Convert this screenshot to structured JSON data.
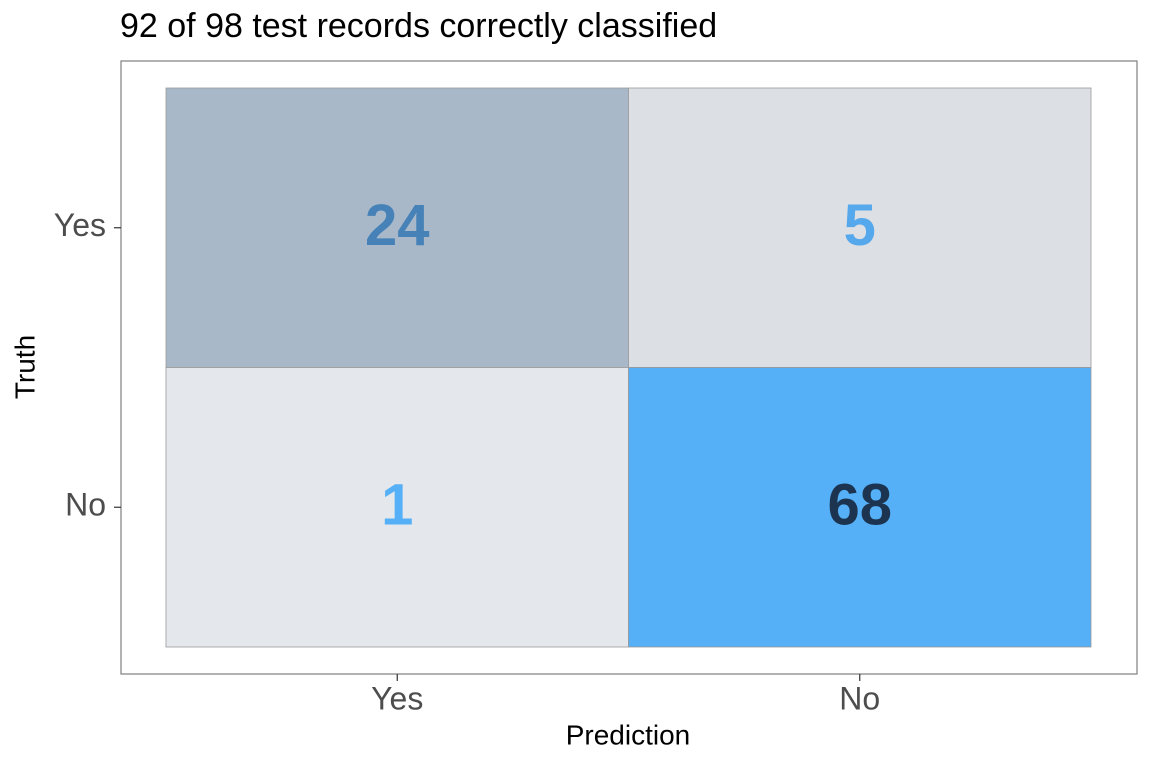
{
  "chart_data": {
    "type": "heatmap",
    "title": "92 of 98 test records correctly classified",
    "x_label": "Prediction",
    "y_label": "Truth",
    "x_categories": [
      "Yes",
      "No"
    ],
    "y_categories": [
      "Yes",
      "No"
    ],
    "values": [
      [
        24,
        5
      ],
      [
        1,
        68
      ]
    ],
    "cell_colors": [
      [
        "#a8b8c8",
        "#dcdfe4"
      ],
      [
        "#e4e8ec",
        "#56b0f7"
      ]
    ],
    "label_colors": [
      [
        "#4682b8",
        "#56a8ec"
      ],
      [
        "#56b0f7",
        "#1c3450"
      ]
    ]
  }
}
